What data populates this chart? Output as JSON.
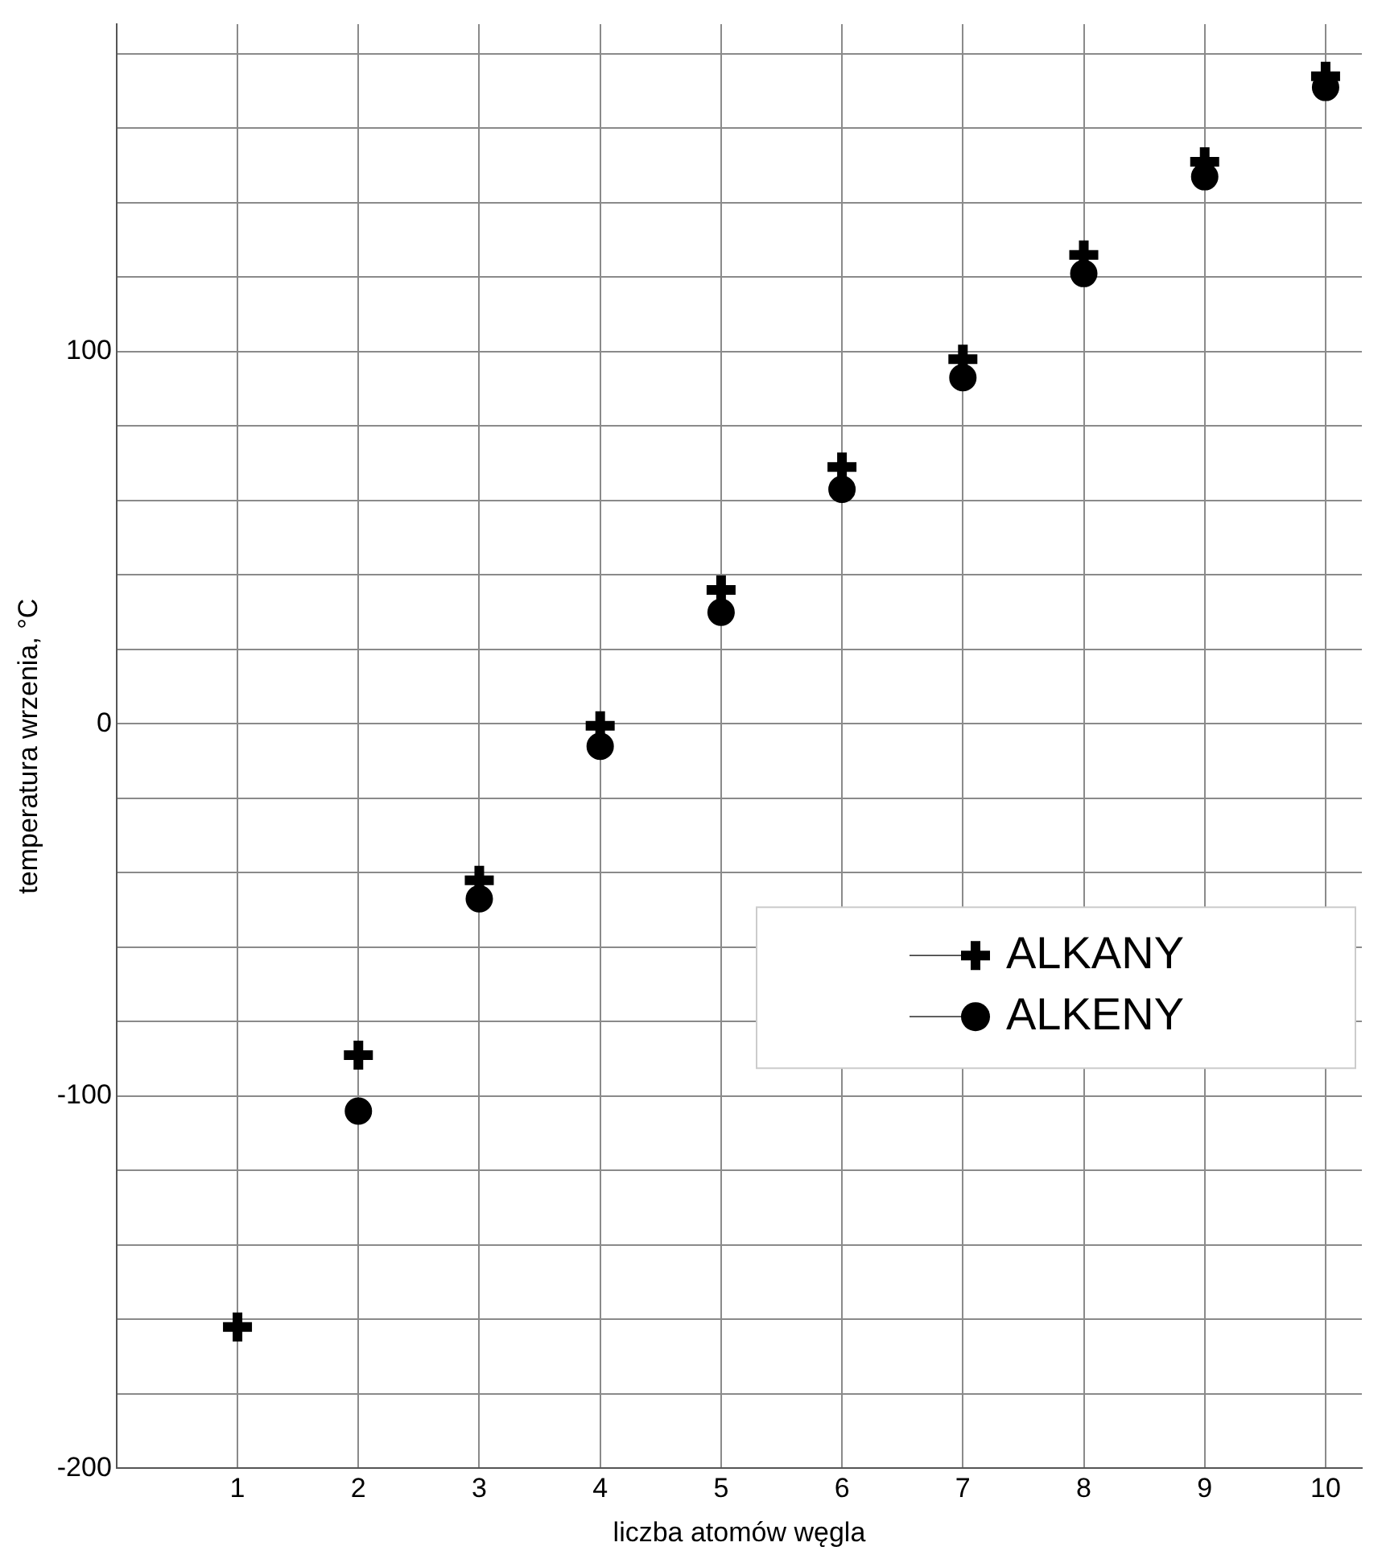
{
  "chart_data": {
    "type": "scatter",
    "xlabel": "liczba atomów węgla",
    "ylabel": "temperatura wrzenia, °C",
    "xlim": [
      0,
      10.3
    ],
    "xticks": [
      {
        "value": 0,
        "label": null
      },
      1,
      2,
      3,
      4,
      5,
      6,
      7,
      8,
      9,
      10
    ],
    "ylim": [
      -200,
      188
    ],
    "yticks": [
      -200,
      {
        "value": -180,
        "label": null
      },
      {
        "value": -160,
        "label": null
      },
      {
        "value": -140,
        "label": null
      },
      {
        "value": -120,
        "label": null
      },
      -100,
      {
        "value": -80,
        "label": null
      },
      {
        "value": -60,
        "label": null
      },
      {
        "value": -40,
        "label": null
      },
      {
        "value": -20,
        "label": null
      },
      0,
      {
        "value": 20,
        "label": null
      },
      {
        "value": 40,
        "label": null
      },
      {
        "value": 60,
        "label": null
      },
      {
        "value": 80,
        "label": null
      },
      100,
      {
        "value": 120,
        "label": null
      },
      {
        "value": 140,
        "label": null
      },
      {
        "value": 160,
        "label": null
      },
      {
        "value": 180,
        "label": null
      }
    ],
    "grid": true,
    "legend": "right",
    "series": [
      {
        "name": "ALKANY",
        "color": "#000000",
        "marker": "cross",
        "x": [
          1,
          2,
          3,
          4,
          5,
          6,
          7,
          8,
          9,
          10
        ],
        "values": [
          -162,
          -89,
          -42,
          -0.5,
          36,
          69,
          98,
          126,
          151,
          174
        ]
      },
      {
        "name": "ALKENY",
        "color": "#000000",
        "marker": "circle",
        "x": [
          2,
          3,
          4,
          5,
          6,
          7,
          8,
          9,
          10
        ],
        "values": [
          -104,
          -47,
          -6,
          30,
          63,
          93,
          121,
          147,
          171
        ]
      }
    ]
  }
}
